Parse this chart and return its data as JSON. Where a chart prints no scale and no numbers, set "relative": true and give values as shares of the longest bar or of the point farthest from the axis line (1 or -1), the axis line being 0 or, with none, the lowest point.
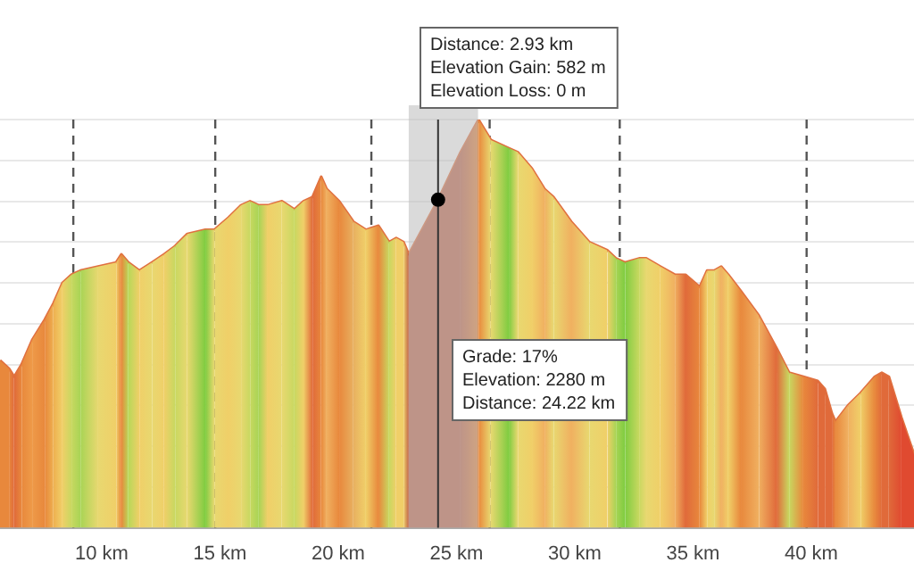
{
  "chart_data": {
    "type": "area",
    "relative": true,
    "x": [
      5.7,
      6.08,
      6.3,
      6.61,
      7.06,
      7.59,
      7.96,
      8.34,
      8.72,
      9.1,
      9.85,
      10.61,
      10.83,
      11.13,
      11.59,
      12.12,
      12.64,
      13.1,
      13.62,
      14.38,
      14.76,
      15.36,
      15.89,
      16.27,
      16.64,
      17.02,
      17.62,
      18.15,
      18.53,
      18.91,
      19.28,
      19.51,
      20.04,
      20.64,
      21.17,
      21.7,
      22.15,
      22.45,
      22.76,
      22.98,
      24.19,
      25.17,
      25.93,
      26.45,
      27.21,
      27.59,
      28.19,
      28.72,
      29.1,
      29.85,
      30.61,
      31.37,
      31.74,
      32.12,
      32.72,
      33.02,
      33.62,
      34.23,
      34.68,
      35.28,
      35.59,
      35.89,
      36.19,
      36.49,
      37.02,
      37.78,
      38.53,
      39.06,
      39.66,
      40.27,
      40.57,
      40.87,
      41.02,
      41.55,
      42.08,
      42.68,
      42.98,
      43.28,
      43.81,
      44.34
    ],
    "values": [
      0.41,
      0.39,
      0.37,
      0.4,
      0.46,
      0.51,
      0.55,
      0.6,
      0.62,
      0.63,
      0.64,
      0.65,
      0.67,
      0.65,
      0.63,
      0.65,
      0.67,
      0.69,
      0.72,
      0.73,
      0.73,
      0.76,
      0.79,
      0.8,
      0.79,
      0.79,
      0.8,
      0.78,
      0.8,
      0.81,
      0.86,
      0.83,
      0.8,
      0.75,
      0.73,
      0.74,
      0.7,
      0.71,
      0.7,
      0.67,
      0.8,
      0.92,
      1.0,
      0.95,
      0.93,
      0.92,
      0.88,
      0.83,
      0.81,
      0.75,
      0.7,
      0.68,
      0.66,
      0.65,
      0.66,
      0.66,
      0.64,
      0.62,
      0.62,
      0.59,
      0.63,
      0.63,
      0.64,
      0.62,
      0.58,
      0.52,
      0.44,
      0.38,
      0.37,
      0.36,
      0.34,
      0.28,
      0.26,
      0.3,
      0.33,
      0.37,
      0.38,
      0.37,
      0.27,
      0.18
    ],
    "colors": [
      "#e8883c",
      "#e8883c",
      "#e06a3a",
      "#e8883c",
      "#ee9a48",
      "#e8883c",
      "#eeb050",
      "#f0cf68",
      "#c8d860",
      "#a8d455",
      "#e8d870",
      "#f0cf68",
      "#e8883c",
      "#b8d858",
      "#f0cf68",
      "#e8d870",
      "#f0cf68",
      "#c8d860",
      "#e8d870",
      "#7fcc40",
      "#e8d870",
      "#f0cf68",
      "#e8d870",
      "#c8d860",
      "#a8d455",
      "#f0cf68",
      "#e8d870",
      "#c8d860",
      "#f0cf68",
      "#e06a3a",
      "#e8883c",
      "#f0b060",
      "#e8883c",
      "#e8b060",
      "#f0cf68",
      "#e8883c",
      "#c8d860",
      "#f0cf68",
      "#f0cf68",
      "#c0654a",
      "#c0654a",
      "#c0654a",
      "#e8883c",
      "#e8d870",
      "#7fcc40",
      "#e8d870",
      "#f0cf68",
      "#f0b060",
      "#e8d870",
      "#f0b060",
      "#e8d870",
      "#f0cf68",
      "#a8d455",
      "#7fcc40",
      "#c8d860",
      "#e8d870",
      "#f0cf68",
      "#f0b060",
      "#e06a3a",
      "#e8883c",
      "#f0cf68",
      "#e8d870",
      "#f0b060",
      "#f0cf68",
      "#e8883c",
      "#f0b060",
      "#e06a3a",
      "#c8d860",
      "#e8883c",
      "#e06a3a",
      "#e06a3a",
      "#e06a3a",
      "#e8883c",
      "#f0b060",
      "#f0cf68",
      "#e8883c",
      "#e06a3a",
      "#e06a3a",
      "#e04a30",
      "#e04a30"
    ],
    "color": "#e07040",
    "xlim": [
      5.7,
      44.34
    ],
    "xticks": [
      {
        "value": 10,
        "label": "10 km"
      },
      {
        "value": 15,
        "label": "15 km"
      },
      {
        "value": 20,
        "label": "20 km"
      },
      {
        "value": 25,
        "label": "25 km"
      },
      {
        "value": 30,
        "label": "30 km"
      },
      {
        "value": 35,
        "label": "35 km"
      },
      {
        "value": 40,
        "label": "40 km"
      }
    ],
    "grid": "y",
    "ref_lines": [
      {
        "axis": "x",
        "value": 8.8,
        "color": "#555555",
        "line_style": "dashed"
      },
      {
        "axis": "x",
        "value": 14.8,
        "color": "#555555",
        "line_style": "dashed"
      },
      {
        "axis": "x",
        "value": 21.4,
        "color": "#555555",
        "line_style": "dashed"
      },
      {
        "axis": "x",
        "value": 26.4,
        "color": "#555555",
        "line_style": "dashed"
      },
      {
        "axis": "x",
        "value": 31.9,
        "color": "#555555",
        "line_style": "dashed"
      },
      {
        "axis": "x",
        "value": 39.8,
        "color": "#555555",
        "line_style": "dashed"
      },
      {
        "axis": "x",
        "value": 24.22,
        "color": "#333333"
      }
    ],
    "bands": [
      {
        "axis": "x",
        "from": 22.98,
        "to": 25.91,
        "color": "#bbbbbb"
      }
    ],
    "annotations": [
      "Distance: 2.93 km\nElevation Gain: 582 m\nElevation Loss: 0 m",
      "Grade: 17%\nElevation: 2280 m\nDistance: 24.22 km"
    ]
  }
}
